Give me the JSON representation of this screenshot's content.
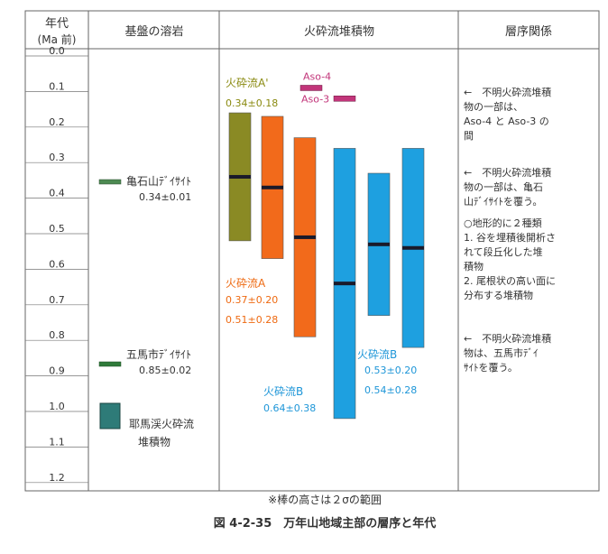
{
  "header": {
    "age_col": "年代",
    "age_unit": "(Ma 前)",
    "basement": "基盤の溶岩",
    "pyroclastic": "火砕流堆積物",
    "stratigraphy": "層序関係"
  },
  "age_ticks": [
    "0.0",
    "0.1",
    "0.2",
    "0.3",
    "0.4",
    "0.5",
    "0.6",
    "0.7",
    "0.8",
    "0.9",
    "1.0",
    "1.1",
    "1.2"
  ],
  "basement_items": [
    {
      "name": "亀石山ﾃﾞｲｻｲﾄ",
      "value": "0.34±0.01",
      "age": 0.34,
      "color": "#4d8a52"
    },
    {
      "name": "五馬市ﾃﾞｲｻｲﾄ",
      "value": "0.85±0.02",
      "age": 0.85,
      "color": "#2f7a3a"
    },
    {
      "name": "耶馬渓火砕流",
      "name2": "堆積物",
      "color": "#2e7b78"
    }
  ],
  "tephra": [
    {
      "name": "Aso-4",
      "age": 0.09,
      "color": "#c2357a"
    },
    {
      "name": "Aso-3",
      "age": 0.12,
      "color": "#c2357a"
    }
  ],
  "flow_groups": [
    {
      "name": "火砕流A'",
      "color": "#9a9a1e",
      "text_color": "#8a8a10",
      "values": [
        "0.34±0.18"
      ]
    },
    {
      "name": "火砕流A",
      "color": "#f26a1b",
      "text_color": "#ee6a12",
      "values": [
        "0.37±0.20",
        "0.51±0.28"
      ]
    },
    {
      "name": "火砕流B",
      "color": "#1ea0e0",
      "text_color": "#1e96d8",
      "values": [
        "0.64±0.38"
      ]
    },
    {
      "name": "火砕流B",
      "color": "#1ea0e0",
      "text_color": "#1e96d8",
      "values": [
        "0.53±0.20",
        "0.54±0.28"
      ]
    }
  ],
  "bars": [
    {
      "group": "A'",
      "center": 0.34,
      "sigma": 0.18,
      "color": "#8a8a24"
    },
    {
      "group": "A",
      "center": 0.37,
      "sigma": 0.2,
      "color": "#f26a1b"
    },
    {
      "group": "A",
      "center": 0.51,
      "sigma": 0.28,
      "color": "#f26a1b"
    },
    {
      "group": "B",
      "center": 0.64,
      "sigma": 0.38,
      "color": "#1ea0e0"
    },
    {
      "group": "B",
      "center": 0.53,
      "sigma": 0.2,
      "color": "#1ea0e0"
    },
    {
      "group": "B",
      "center": 0.54,
      "sigma": 0.28,
      "color": "#1ea0e0"
    }
  ],
  "relations": [
    {
      "lines": [
        "←　不明火砕流堆積",
        "物の一部は、",
        "Aso-4 と Aso-3 の",
        "間"
      ]
    },
    {
      "lines": [
        "←　不明火砕流堆積",
        "物の一部は、亀石",
        "山ﾃﾞｲｻｲﾄを覆う。"
      ]
    },
    {
      "lines": [
        "○地形的に２種類",
        "1. 谷を埋積後開析さ",
        "れて段丘化した堆",
        "積物",
        "2. 尾根状の高い面に",
        "分布する堆積物"
      ]
    },
    {
      "lines": [
        "←　不明火砕流堆積",
        "物は、五馬市ﾃﾞｲ",
        "ｻｲﾄを覆う。"
      ]
    }
  ],
  "footnote": "※棒の高さは２σの範囲",
  "caption": "図 4-2-35　万年山地域主部の層序と年代"
}
